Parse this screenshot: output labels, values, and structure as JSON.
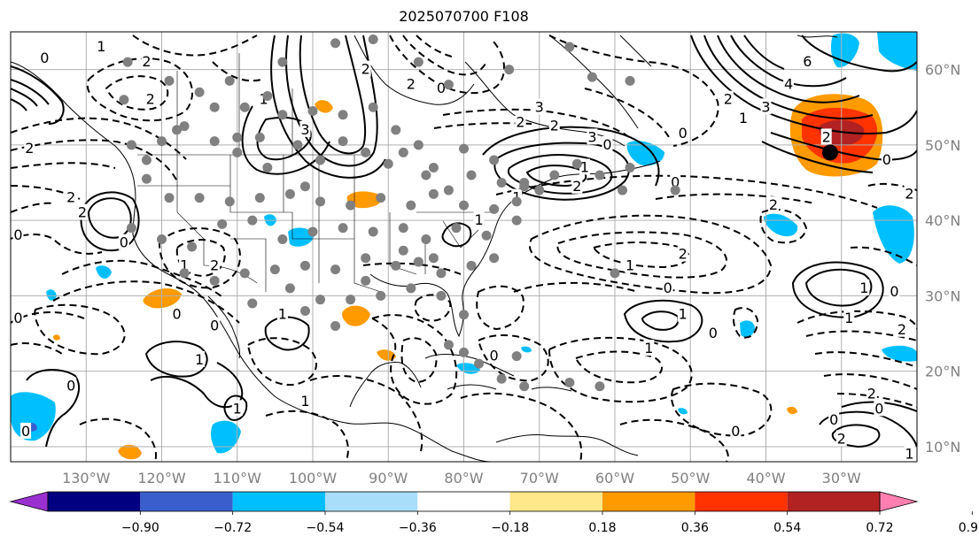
{
  "title": "2025070700 F108",
  "map": {
    "lon_range": [
      -140,
      -20
    ],
    "lat_range": [
      8,
      65
    ],
    "lon_ticks": [
      "130°W",
      "120°W",
      "110°W",
      "100°W",
      "90°W",
      "80°W",
      "70°W",
      "60°W",
      "50°W",
      "40°W",
      "30°W"
    ],
    "lat_ticks": [
      "10°N",
      "20°N",
      "30°N",
      "40°N",
      "50°N",
      "60°N"
    ],
    "grid": true,
    "contour_labels": [
      {
        "text": "0",
        "lon": -135.5,
        "lat": 61.5
      },
      {
        "text": "1",
        "lon": -128,
        "lat": 63
      },
      {
        "text": "2",
        "lon": -122,
        "lat": 61
      },
      {
        "text": "2",
        "lon": -121.5,
        "lat": 56
      },
      {
        "text": "2",
        "lon": -137.5,
        "lat": 49.5
      },
      {
        "text": "2",
        "lon": -132,
        "lat": 43
      },
      {
        "text": "2",
        "lon": -130.5,
        "lat": 41
      },
      {
        "text": "0",
        "lon": -139,
        "lat": 38
      },
      {
        "text": "0",
        "lon": -125,
        "lat": 37
      },
      {
        "text": "1",
        "lon": -117,
        "lat": 34
      },
      {
        "text": "2",
        "lon": -113,
        "lat": 34
      },
      {
        "text": "1",
        "lon": -106.5,
        "lat": 56
      },
      {
        "text": "3",
        "lon": -101,
        "lat": 52
      },
      {
        "text": "2",
        "lon": -93,
        "lat": 60
      },
      {
        "text": "2",
        "lon": -87,
        "lat": 58
      },
      {
        "text": "0",
        "lon": -83,
        "lat": 57.5
      },
      {
        "text": "3",
        "lon": -70,
        "lat": 55
      },
      {
        "text": "2",
        "lon": -72.5,
        "lat": 53
      },
      {
        "text": "2",
        "lon": -68,
        "lat": 52.5
      },
      {
        "text": "3",
        "lon": -63,
        "lat": 51
      },
      {
        "text": "0",
        "lon": -61,
        "lat": 50
      },
      {
        "text": "0",
        "lon": -51,
        "lat": 51.5
      },
      {
        "text": "1",
        "lon": -64,
        "lat": 47
      },
      {
        "text": "2",
        "lon": -65,
        "lat": 44.5
      },
      {
        "text": "0",
        "lon": -52,
        "lat": 45
      },
      {
        "text": "1",
        "lon": -78,
        "lat": 40
      },
      {
        "text": "1",
        "lon": -73,
        "lat": 43
      },
      {
        "text": "2",
        "lon": -51,
        "lat": 35.5
      },
      {
        "text": "1",
        "lon": -58,
        "lat": 34
      },
      {
        "text": "0",
        "lon": -53,
        "lat": 31
      },
      {
        "text": "1",
        "lon": -51,
        "lat": 27.5
      },
      {
        "text": "1",
        "lon": -55.5,
        "lat": 23
      },
      {
        "text": "0",
        "lon": -76,
        "lat": 22
      },
      {
        "text": "0",
        "lon": -47,
        "lat": 25
      },
      {
        "text": "1",
        "lon": -104,
        "lat": 27.5
      },
      {
        "text": "0",
        "lon": -113,
        "lat": 26
      },
      {
        "text": "0",
        "lon": -118,
        "lat": 27.5
      },
      {
        "text": "1",
        "lon": -115,
        "lat": 21.5
      },
      {
        "text": "1",
        "lon": -110,
        "lat": 15
      },
      {
        "text": "1",
        "lon": -101,
        "lat": 16
      },
      {
        "text": "0",
        "lon": -132,
        "lat": 18
      },
      {
        "text": "0",
        "lon": -138,
        "lat": 12
      },
      {
        "text": "0",
        "lon": -139,
        "lat": 27
      },
      {
        "text": "0",
        "lon": -44,
        "lat": 12
      },
      {
        "text": "3",
        "lon": -40,
        "lat": 55
      },
      {
        "text": "4",
        "lon": -37,
        "lat": 58
      },
      {
        "text": "6",
        "lon": -34.5,
        "lat": 61
      },
      {
        "text": "2",
        "lon": -45,
        "lat": 56
      },
      {
        "text": "1",
        "lon": -43,
        "lat": 53.5
      },
      {
        "text": "2",
        "lon": -32,
        "lat": 51
      },
      {
        "text": "0",
        "lon": -24,
        "lat": 48
      },
      {
        "text": "2",
        "lon": -39,
        "lat": 42
      },
      {
        "text": "1",
        "lon": -27,
        "lat": 31
      },
      {
        "text": "0",
        "lon": -23,
        "lat": 30.5
      },
      {
        "text": "1",
        "lon": -29,
        "lat": 27
      },
      {
        "text": "2",
        "lon": -22,
        "lat": 25.5
      },
      {
        "text": "2",
        "lon": -26,
        "lat": 17
      },
      {
        "text": "0",
        "lon": -25,
        "lat": 15
      },
      {
        "text": "0",
        "lon": -31,
        "lat": 13.5
      },
      {
        "text": "2",
        "lon": -30,
        "lat": 11
      },
      {
        "text": "2",
        "lon": -21,
        "lat": 43.5
      },
      {
        "text": "1",
        "lon": -21,
        "lat": 9
      }
    ],
    "station_points": [
      [
        -124.5,
        61
      ],
      [
        -119,
        58.5
      ],
      [
        -115,
        57
      ],
      [
        -111,
        58.5
      ],
      [
        -104,
        61
      ],
      [
        -97,
        63.5
      ],
      [
        -92,
        64
      ],
      [
        -86,
        61
      ],
      [
        -82,
        58
      ],
      [
        -74,
        60
      ],
      [
        -66,
        63
      ],
      [
        -63,
        59
      ],
      [
        -58,
        58.5
      ],
      [
        -118,
        52
      ],
      [
        -113,
        55
      ],
      [
        -109,
        55
      ],
      [
        -107,
        51
      ],
      [
        -104,
        54
      ],
      [
        -100,
        54.5
      ],
      [
        -96,
        54
      ],
      [
        -92,
        55
      ],
      [
        -89,
        52
      ],
      [
        -86,
        50
      ],
      [
        -84,
        47
      ],
      [
        -80,
        49.5
      ],
      [
        -76,
        48
      ],
      [
        -72,
        45
      ],
      [
        -68,
        46
      ],
      [
        -65,
        47.5
      ],
      [
        -62,
        46
      ],
      [
        -58,
        47
      ],
      [
        -59,
        44
      ],
      [
        -52,
        44
      ],
      [
        -124,
        50
      ],
      [
        -122,
        48
      ],
      [
        -120,
        50.5
      ],
      [
        -117,
        52.5
      ],
      [
        -113,
        50.5
      ],
      [
        -110,
        49
      ],
      [
        -106,
        47
      ],
      [
        -102,
        50
      ],
      [
        -99,
        48
      ],
      [
        -96,
        50.5
      ],
      [
        -93,
        49
      ],
      [
        -90,
        47.5
      ],
      [
        -88,
        49
      ],
      [
        -85,
        46
      ],
      [
        -82,
        44
      ],
      [
        -79,
        46
      ],
      [
        -75,
        45
      ],
      [
        -72,
        44.5
      ],
      [
        -122,
        45.5
      ],
      [
        -119,
        43
      ],
      [
        -115,
        43
      ],
      [
        -111,
        42.5
      ],
      [
        -107,
        43
      ],
      [
        -103,
        43.5
      ],
      [
        -99,
        42.5
      ],
      [
        -95,
        42
      ],
      [
        -91,
        43
      ],
      [
        -87,
        42
      ],
      [
        -84,
        43.5
      ],
      [
        -80,
        42
      ],
      [
        -76,
        41.5
      ],
      [
        -73,
        42.5
      ],
      [
        -70,
        44
      ],
      [
        -124,
        39
      ],
      [
        -120,
        37.5
      ],
      [
        -116,
        36.5
      ],
      [
        -112,
        39.5
      ],
      [
        -108,
        40
      ],
      [
        -104,
        37.5
      ],
      [
        -100,
        38.5
      ],
      [
        -96,
        39
      ],
      [
        -92,
        38.5
      ],
      [
        -88,
        39
      ],
      [
        -85,
        37.5
      ],
      [
        -81,
        39
      ],
      [
        -77,
        38
      ],
      [
        -73,
        40
      ],
      [
        -117,
        33
      ],
      [
        -113,
        32
      ],
      [
        -109,
        33
      ],
      [
        -105,
        33.5
      ],
      [
        -101,
        34
      ],
      [
        -97,
        33.5
      ],
      [
        -93,
        35
      ],
      [
        -89,
        34
      ],
      [
        -86,
        34.5
      ],
      [
        -83,
        33
      ],
      [
        -79,
        34
      ],
      [
        -76,
        35
      ],
      [
        -108,
        29
      ],
      [
        -103,
        31
      ],
      [
        -99,
        29.5
      ],
      [
        -95,
        29.5
      ],
      [
        -91,
        30
      ],
      [
        -87,
        31
      ],
      [
        -83,
        30
      ],
      [
        -80,
        27.5
      ],
      [
        -82,
        23.5
      ],
      [
        -78,
        21
      ],
      [
        -73,
        22
      ],
      [
        -66,
        18.5
      ],
      [
        -62,
        18
      ],
      [
        -75,
        19
      ],
      [
        -72,
        18
      ],
      [
        -80,
        22.5
      ],
      [
        -97,
        26
      ],
      [
        -101,
        28
      ],
      [
        -93,
        32
      ],
      [
        -88,
        36
      ],
      [
        -84,
        35
      ],
      [
        -60,
        33
      ],
      [
        -125,
        56
      ],
      [
        -110,
        51
      ],
      [
        -106,
        56.5
      ],
      [
        -101,
        44.5
      ]
    ],
    "markers": [
      {
        "type": "storm-center",
        "lon": -31.5,
        "lat": 49
      }
    ]
  },
  "colorbar": {
    "ticks": [
      "−0.90",
      "−0.72",
      "−0.54",
      "−0.36",
      "−0.18",
      "0.18",
      "0.36",
      "0.54",
      "0.72",
      "0.90"
    ],
    "colors": [
      "#9b30d0",
      "#000080",
      "#3a5fcd",
      "#00bfff",
      "#a8def9",
      "#ffffff",
      "#ffe88a",
      "#ff9a00",
      "#ff3300",
      "#b22222",
      "#ff7fb0"
    ]
  }
}
